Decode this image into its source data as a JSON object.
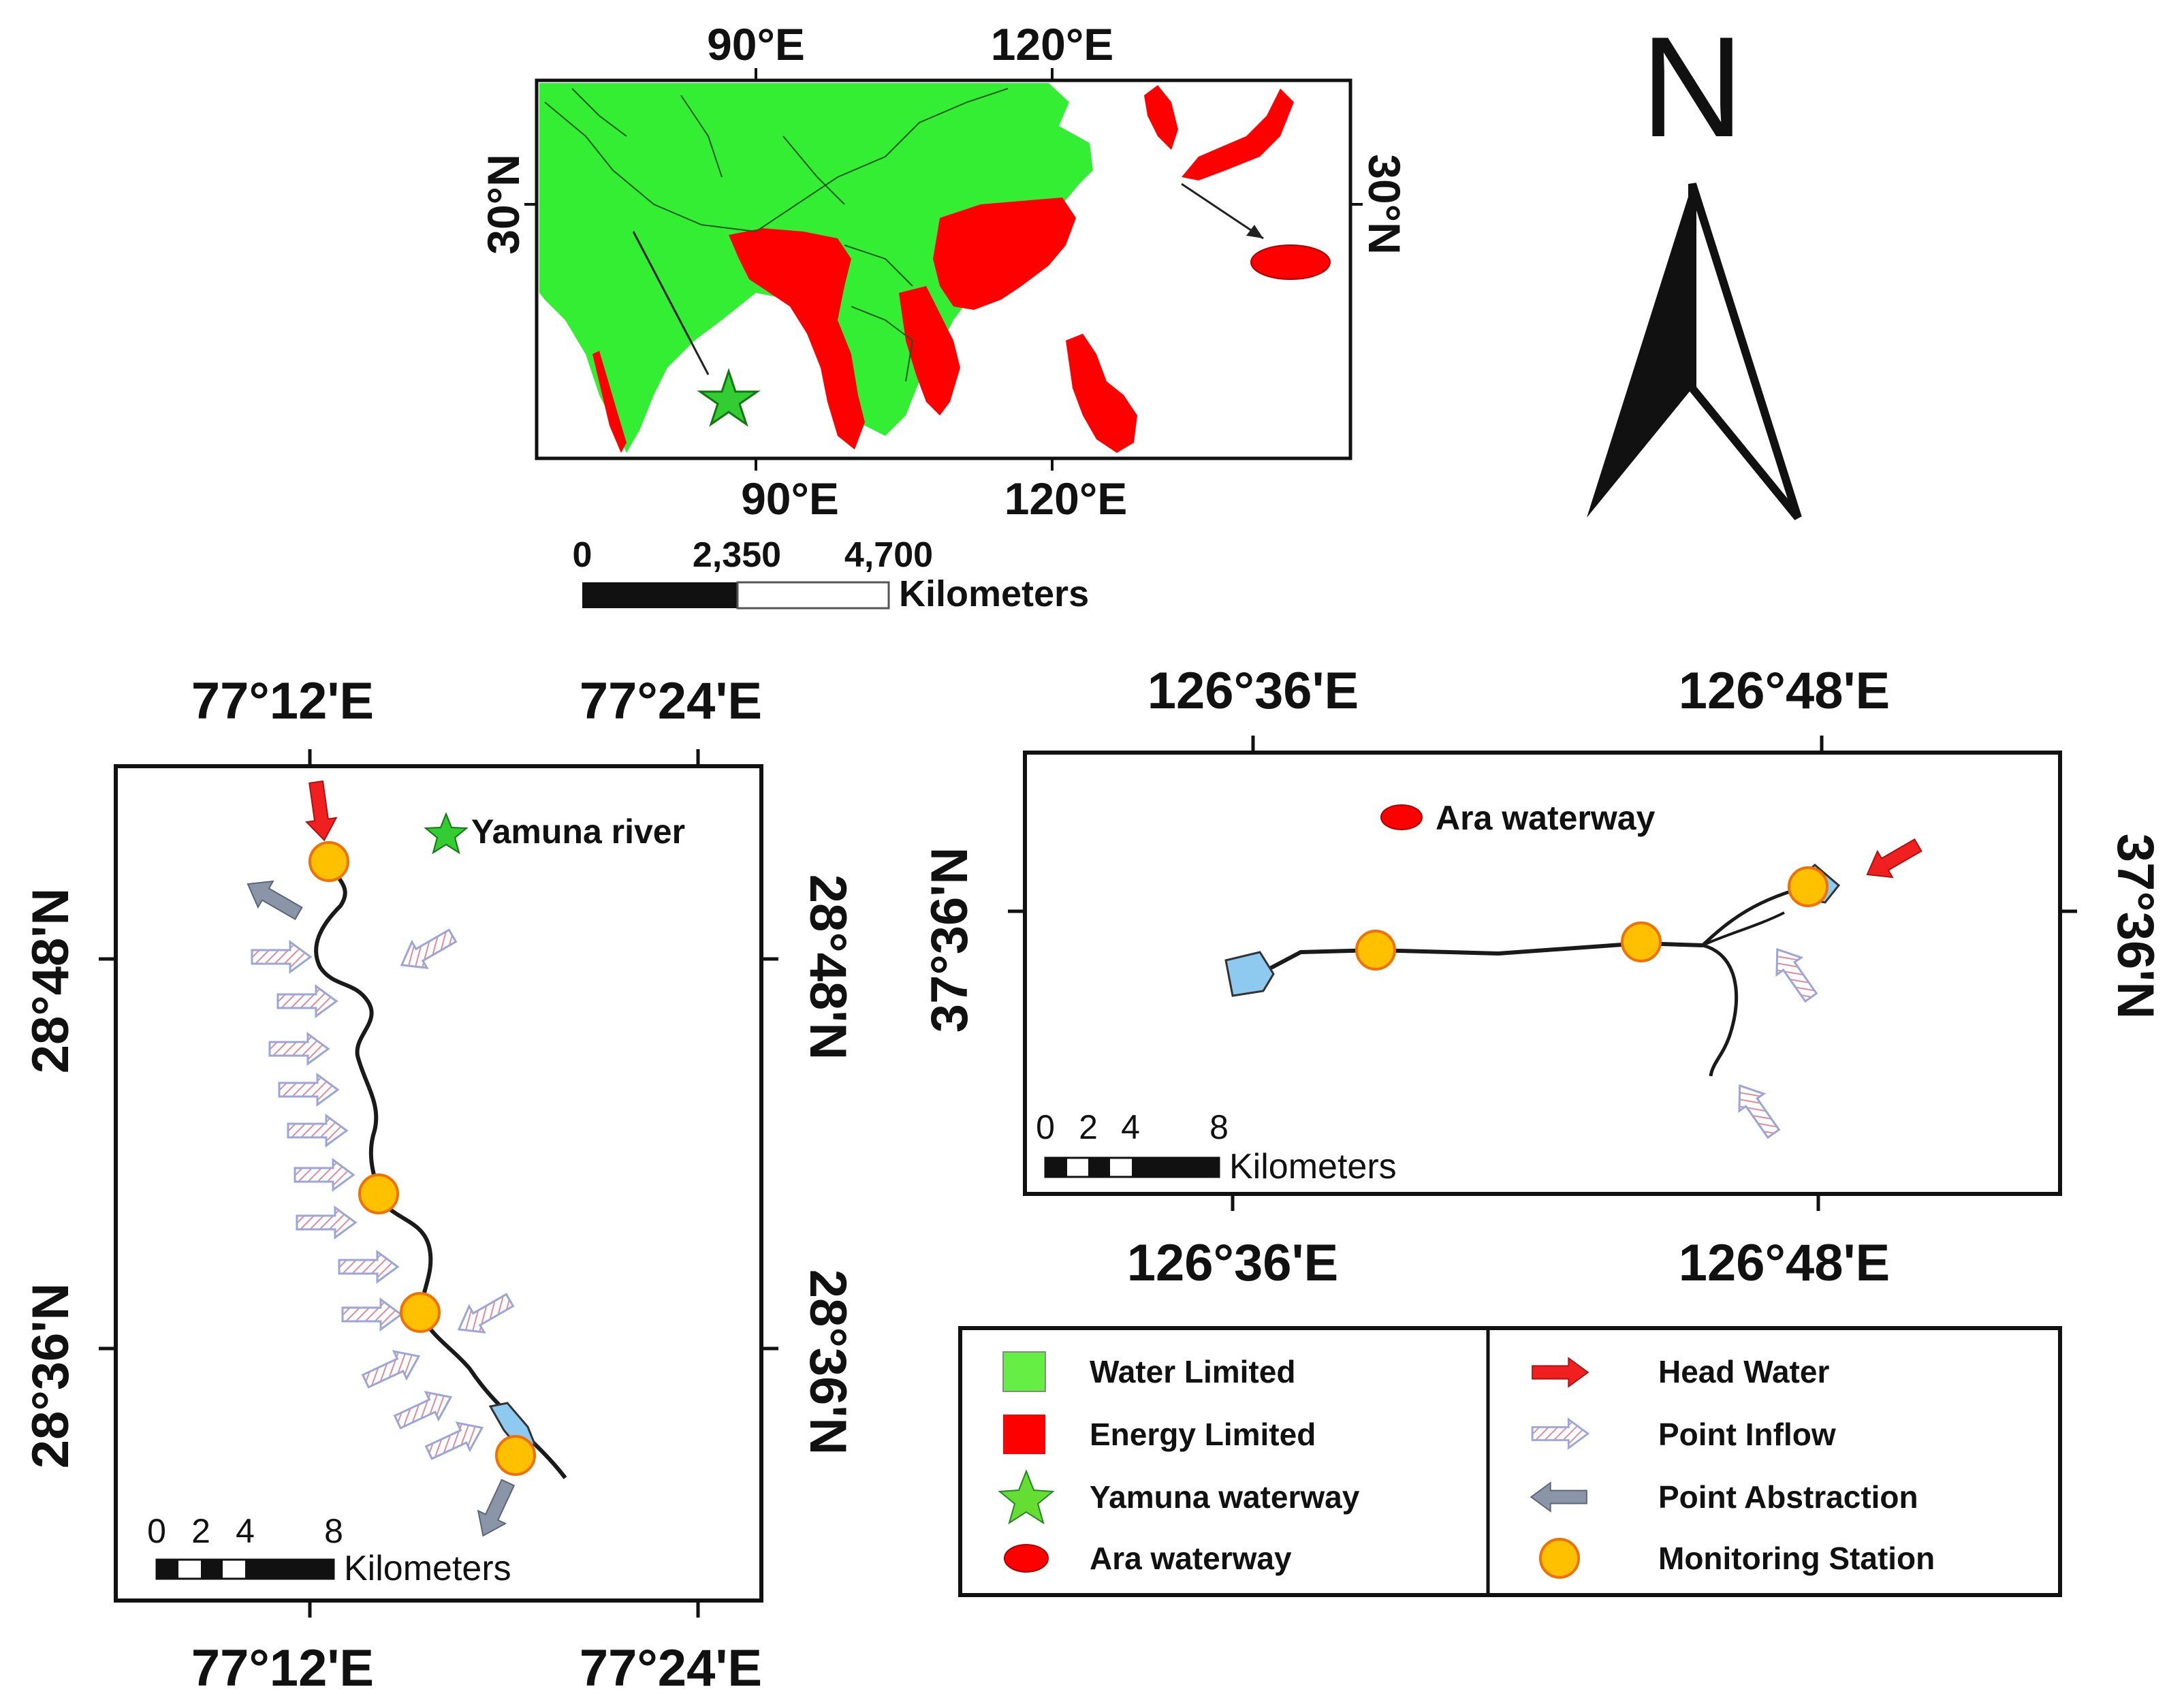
{
  "overview_map": {
    "top_labels": [
      "90°E",
      "120°E"
    ],
    "bottom_labels": [
      "90°E",
      "120°E"
    ],
    "left_label": "30°N",
    "right_label": "30°N",
    "scale": {
      "ticks": [
        "0",
        "2,350",
        "4,700"
      ],
      "unit": "Kilometers"
    },
    "colors": {
      "water_limited": "#33ee33",
      "energy_limited": "#ff0000"
    }
  },
  "north_arrow": {
    "label": "N"
  },
  "yamuna_map": {
    "top_labels": [
      "77°12'E",
      "77°24'E"
    ],
    "bottom_labels": [
      "77°12'E",
      "77°24'E"
    ],
    "left_labels": [
      "28°48'N",
      "28°36'N"
    ],
    "right_labels": [
      "28°48'N",
      "28°36'N"
    ],
    "legend": "Yamuna river",
    "scale": {
      "ticks": [
        "0",
        "2",
        "4",
        "8"
      ],
      "unit": "Kilometers"
    }
  },
  "ara_map": {
    "top_labels": [
      "126°36'E",
      "126°48'E"
    ],
    "bottom_labels": [
      "126°36'E",
      "126°48'E"
    ],
    "left_label": "37°36'N",
    "right_label": "37°36'N",
    "legend": "Ara waterway",
    "scale": {
      "ticks": [
        "0",
        "2",
        "4",
        "8"
      ],
      "unit": "Kilometers"
    }
  },
  "legend": {
    "left": [
      "Water Limited",
      "Energy Limited",
      "Yamuna waterway",
      "Ara waterway"
    ],
    "right": [
      "Head Water",
      "Point Inflow",
      "Point Abstraction",
      "Monitoring Station"
    ]
  }
}
